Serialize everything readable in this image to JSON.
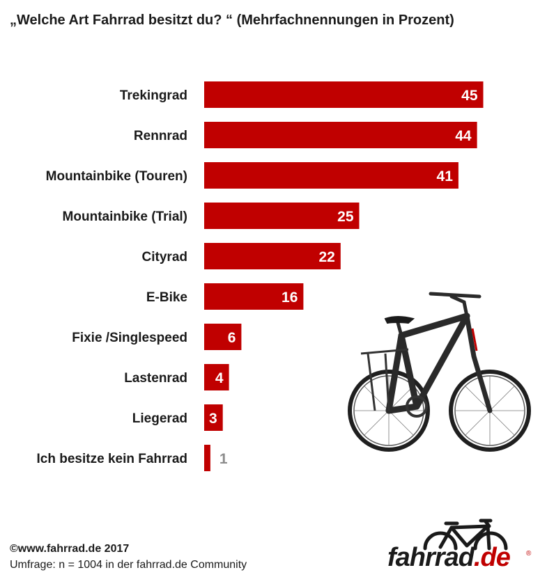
{
  "title": "„Welche Art Fahrrad  besitzt du? “ (Mehrfachnennungen in Prozent)",
  "chart_data": {
    "type": "bar",
    "orientation": "horizontal",
    "categories": [
      "Trekingrad",
      "Rennrad",
      "Mountainbike (Touren)",
      "Mountainbike (Trial)",
      "Cityrad",
      "E-Bike",
      "Fixie /Singlespeed",
      "Lastenrad",
      "Liegerad",
      "Ich besitze kein Fahrrad"
    ],
    "values": [
      45,
      44,
      41,
      25,
      22,
      16,
      6,
      4,
      3,
      1
    ],
    "bar_color": "#c00000",
    "grid": false,
    "legend": "none"
  },
  "footer": {
    "copyright": "©www.fahrrad.de 2017",
    "survey": "Umfrage: n = 1004 in der fahrrad.de Community"
  },
  "logo": {
    "text_main": "fahrrad",
    "text_suffix": ".de",
    "registered": "®"
  },
  "colors": {
    "accent": "#c00000",
    "text": "#1a1a1a",
    "muted_value": "#8c8c8c"
  }
}
